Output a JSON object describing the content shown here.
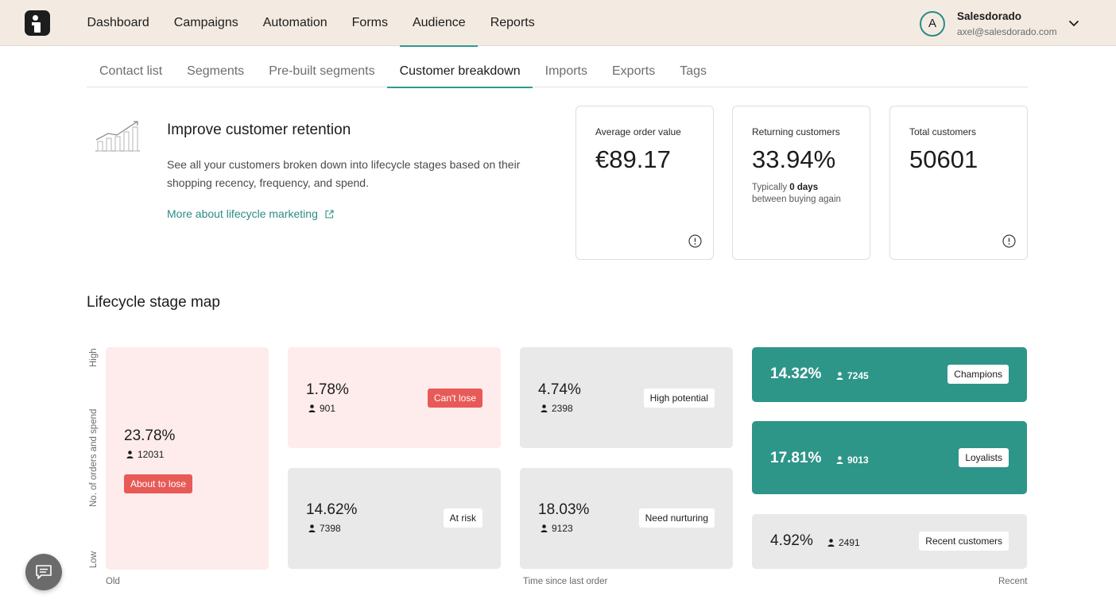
{
  "topnav": {
    "items": [
      {
        "label": "Dashboard"
      },
      {
        "label": "Campaigns"
      },
      {
        "label": "Automation"
      },
      {
        "label": "Forms"
      },
      {
        "label": "Audience"
      },
      {
        "label": "Reports"
      }
    ],
    "active": "Audience"
  },
  "user": {
    "initial": "A",
    "name": "Salesdorado",
    "email": "axel@salesdorado.com"
  },
  "subnav": {
    "items": [
      {
        "label": "Contact list"
      },
      {
        "label": "Segments"
      },
      {
        "label": "Pre-built segments"
      },
      {
        "label": "Customer breakdown"
      },
      {
        "label": "Imports"
      },
      {
        "label": "Exports"
      },
      {
        "label": "Tags"
      }
    ],
    "active": "Customer breakdown"
  },
  "intro": {
    "title": "Improve customer retention",
    "description": "See all your customers broken down into lifecycle stages based on their shopping recency, frequency, and spend.",
    "link": "More about lifecycle marketing"
  },
  "stats": {
    "avg_order": {
      "label": "Average order value",
      "value": "€89.17"
    },
    "returning": {
      "label": "Returning customers",
      "value": "33.94%",
      "note_prefix": "Typically ",
      "note_bold": "0 days",
      "note_suffix": "between buying again"
    },
    "total": {
      "label": "Total customers",
      "value": "50601"
    }
  },
  "map": {
    "title": "Lifecycle stage map",
    "y_high": "High",
    "y_label": "No. of orders and spend",
    "y_low": "Low",
    "x_old": "Old",
    "x_label": "Time since last order",
    "x_recent": "Recent",
    "segments": {
      "about_to_lose": {
        "pct": "23.78%",
        "count": "12031",
        "tag": "About to lose"
      },
      "cant_lose": {
        "pct": "1.78%",
        "count": "901",
        "tag": "Can't lose"
      },
      "at_risk": {
        "pct": "14.62%",
        "count": "7398",
        "tag": "At risk"
      },
      "high_potential": {
        "pct": "4.74%",
        "count": "2398",
        "tag": "High potential"
      },
      "need_nurturing": {
        "pct": "18.03%",
        "count": "9123",
        "tag": "Need nurturing"
      },
      "champions": {
        "pct": "14.32%",
        "count": "7245",
        "tag": "Champions"
      },
      "loyalists": {
        "pct": "17.81%",
        "count": "9013",
        "tag": "Loyalists"
      },
      "recent": {
        "pct": "4.92%",
        "count": "2491",
        "tag": "Recent customers"
      }
    }
  },
  "colors": {
    "accent": "#2e9b92",
    "teal_cell": "#2e9589",
    "pink_cell": "#fdeceb",
    "grey_cell": "#e9e9e9",
    "red_tag": "#e85a57",
    "topbar": "#f3ebe1"
  },
  "icons": {
    "logo": "brand-logo-icon",
    "chevron": "chevron-down-icon",
    "trend": "growth-chart-icon",
    "external": "external-link-icon",
    "info": "info-icon",
    "person": "person-icon",
    "chat": "chat-icon"
  }
}
